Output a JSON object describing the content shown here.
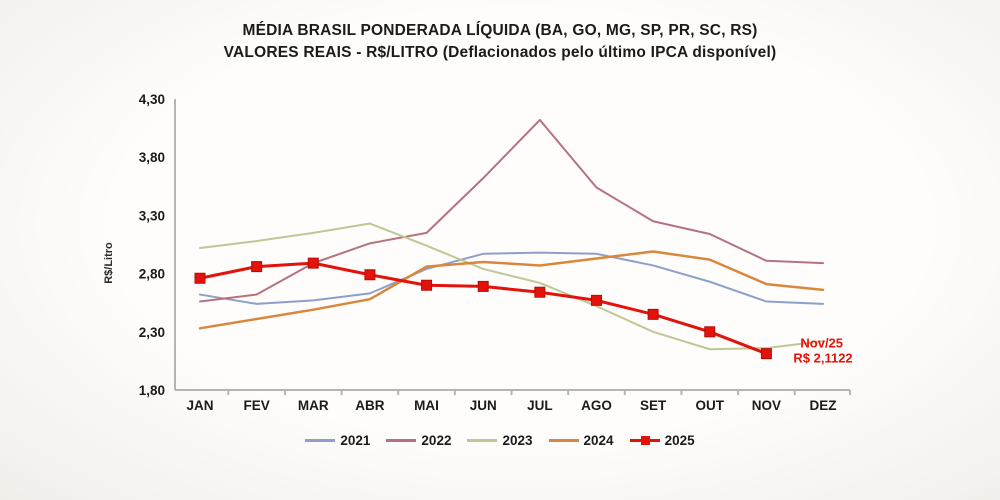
{
  "title": {
    "line1": "MÉDIA BRASIL PONDERADA LÍQUIDA (BA, GO, MG, SP, PR, SC, RS)",
    "line2": "VALORES REAIS - R$/LITRO (Deflacionados pelo último IPCA disponível)"
  },
  "chart_data": {
    "type": "line",
    "title": "MÉDIA BRASIL PONDERADA LÍQUIDA (BA, GO, MG, SP, PR, SC, RS)",
    "subtitle": "VALORES REAIS - R$/LITRO (Deflacionados pelo último IPCA disponível)",
    "ylabel": "R$/Litro",
    "xlabel": "",
    "grid": false,
    "legend_position": "bottom",
    "ylim": [
      1.8,
      4.3
    ],
    "yticks": [
      {
        "value": 4.3,
        "label": "4,30"
      },
      {
        "value": 3.8,
        "label": "3,80"
      },
      {
        "value": 3.3,
        "label": "3,30"
      },
      {
        "value": 2.8,
        "label": "2,80"
      },
      {
        "value": 2.3,
        "label": "2,30"
      },
      {
        "value": 1.8,
        "label": "1,80"
      }
    ],
    "categories": [
      "JAN",
      "FEV",
      "MAR",
      "ABR",
      "MAI",
      "JUN",
      "JUL",
      "AGO",
      "SET",
      "OUT",
      "NOV",
      "DEZ"
    ],
    "series": [
      {
        "name": "2021",
        "color": "#8e9fca",
        "line_width": 2,
        "marker": "none",
        "values": [
          2.62,
          2.54,
          2.57,
          2.63,
          2.84,
          2.97,
          2.98,
          2.97,
          2.87,
          2.73,
          2.56,
          2.54
        ]
      },
      {
        "name": "2022",
        "color": "#b4737f",
        "line_width": 2,
        "marker": "none",
        "values": [
          2.56,
          2.62,
          2.89,
          3.06,
          3.15,
          3.62,
          4.12,
          3.54,
          3.25,
          3.14,
          2.91,
          2.89
        ]
      },
      {
        "name": "2023",
        "color": "#bfc795",
        "line_width": 2,
        "marker": "none",
        "values": [
          3.02,
          3.08,
          3.15,
          3.23,
          3.04,
          2.84,
          2.72,
          2.52,
          2.3,
          2.15,
          2.16,
          2.22
        ]
      },
      {
        "name": "2024",
        "color": "#d8883c",
        "line_width": 2.5,
        "marker": "none",
        "values": [
          2.33,
          2.41,
          2.49,
          2.58,
          2.86,
          2.9,
          2.87,
          2.93,
          2.99,
          2.92,
          2.71,
          2.66
        ]
      },
      {
        "name": "2025",
        "color": "#e3120b",
        "line_width": 3,
        "marker": "square",
        "values": [
          2.76,
          2.86,
          2.89,
          2.79,
          2.7,
          2.69,
          2.64,
          2.57,
          2.45,
          2.3,
          2.1122,
          null
        ]
      }
    ],
    "annotation": {
      "line1": "Nov/25",
      "line2": "R$ 2,1122",
      "color": "#e3120b",
      "series": "2025",
      "category": "NOV",
      "value": 2.1122
    }
  }
}
